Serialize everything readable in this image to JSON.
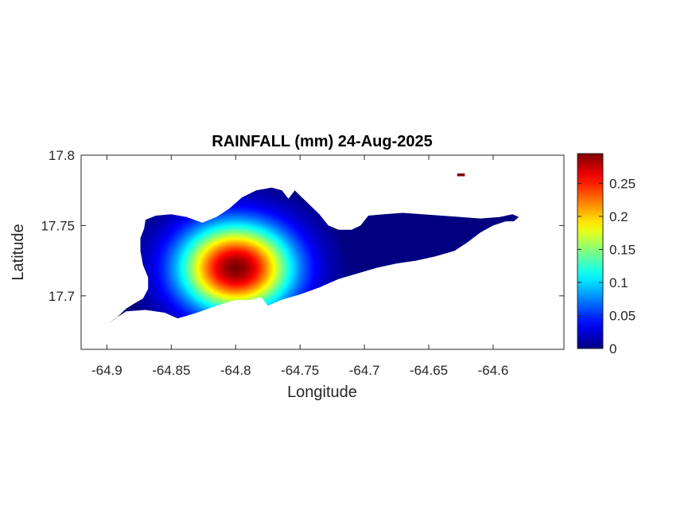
{
  "chart_data": {
    "type": "heatmap",
    "title": "RAINFALL (mm) 24-Aug-2025",
    "xlabel": "Longitude",
    "ylabel": "Latitude",
    "xlim": [
      -64.92,
      -64.545
    ],
    "ylim": [
      17.662,
      17.8
    ],
    "xticks": [
      -64.9,
      -64.85,
      -64.8,
      -64.75,
      -64.7,
      -64.65,
      -64.6
    ],
    "xtick_labels": [
      "-64.9",
      "-64.85",
      "-64.8",
      "-64.75",
      "-64.7",
      "-64.65",
      "-64.6"
    ],
    "yticks": [
      17.7,
      17.75,
      17.8
    ],
    "ytick_labels": [
      "17.7",
      "17.75",
      "17.8"
    ],
    "colormap": "jet",
    "colorbar": {
      "range": [
        0,
        0.295
      ],
      "ticks": [
        0,
        0.05,
        0.1,
        0.15,
        0.2,
        0.25
      ],
      "tick_labels": [
        "0",
        "0.05",
        "0.1",
        "0.15",
        "0.2",
        "0.25"
      ]
    },
    "rainfall_peak": {
      "lon": -64.8,
      "lat": 17.72,
      "value": 0.295
    },
    "grid": false,
    "region_outline": [
      [
        -64.9,
        17.68
      ],
      [
        -64.893,
        17.684
      ],
      [
        -64.885,
        17.691
      ],
      [
        -64.878,
        17.695
      ],
      [
        -64.872,
        17.698
      ],
      [
        -64.868,
        17.705
      ],
      [
        -64.868,
        17.713
      ],
      [
        -64.872,
        17.722
      ],
      [
        -64.874,
        17.732
      ],
      [
        -64.874,
        17.741
      ],
      [
        -64.871,
        17.748
      ],
      [
        -64.87,
        17.754
      ],
      [
        -64.862,
        17.757
      ],
      [
        -64.85,
        17.758
      ],
      [
        -64.838,
        17.756
      ],
      [
        -64.826,
        17.752
      ],
      [
        -64.815,
        17.756
      ],
      [
        -64.805,
        17.762
      ],
      [
        -64.795,
        17.77
      ],
      [
        -64.784,
        17.775
      ],
      [
        -64.772,
        17.777
      ],
      [
        -64.764,
        17.775
      ],
      [
        -64.759,
        17.769
      ],
      [
        -64.754,
        17.775
      ],
      [
        -64.753,
        17.774
      ],
      [
        -64.744,
        17.766
      ],
      [
        -64.735,
        17.758
      ],
      [
        -64.728,
        17.75
      ],
      [
        -64.72,
        17.747
      ],
      [
        -64.71,
        17.747
      ],
      [
        -64.703,
        17.75
      ],
      [
        -64.697,
        17.757
      ],
      [
        -64.685,
        17.758
      ],
      [
        -64.67,
        17.759
      ],
      [
        -64.655,
        17.758
      ],
      [
        -64.64,
        17.757
      ],
      [
        -64.625,
        17.756
      ],
      [
        -64.61,
        17.755
      ],
      [
        -64.595,
        17.756
      ],
      [
        -64.585,
        17.758
      ],
      [
        -64.58,
        17.756
      ],
      [
        -64.584,
        17.753
      ],
      [
        -64.59,
        17.753
      ],
      [
        -64.6,
        17.75
      ],
      [
        -64.61,
        17.745
      ],
      [
        -64.62,
        17.738
      ],
      [
        -64.63,
        17.732
      ],
      [
        -64.645,
        17.728
      ],
      [
        -64.66,
        17.725
      ],
      [
        -64.675,
        17.723
      ],
      [
        -64.69,
        17.72
      ],
      [
        -64.705,
        17.716
      ],
      [
        -64.72,
        17.712
      ],
      [
        -64.735,
        17.706
      ],
      [
        -64.75,
        17.701
      ],
      [
        -64.765,
        17.697
      ],
      [
        -64.775,
        17.693
      ],
      [
        -64.78,
        17.699
      ],
      [
        -64.789,
        17.697
      ],
      [
        -64.8,
        17.697
      ],
      [
        -64.815,
        17.693
      ],
      [
        -64.83,
        17.688
      ],
      [
        -64.845,
        17.684
      ],
      [
        -64.855,
        17.688
      ],
      [
        -64.87,
        17.69
      ],
      [
        -64.885,
        17.689
      ],
      [
        -64.895,
        17.683
      ],
      [
        -64.9,
        17.68
      ]
    ],
    "offshore_island": [
      [
        -64.628,
        17.787
      ],
      [
        -64.622,
        17.787
      ],
      [
        -64.622,
        17.785
      ],
      [
        -64.628,
        17.785
      ]
    ]
  }
}
